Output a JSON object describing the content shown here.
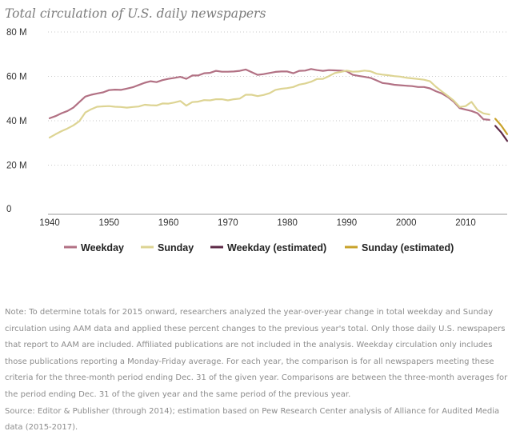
{
  "chart_data": {
    "type": "line",
    "title": "Total circulation of U.S. daily newspapers",
    "xlabel": "",
    "ylabel": "",
    "xlim": [
      1940,
      2017
    ],
    "ylim": [
      0,
      80
    ],
    "x_ticks": [
      1940,
      1950,
      1960,
      1970,
      1980,
      1990,
      2000,
      2010
    ],
    "x_tick_labels": [
      "1940",
      "1950",
      "1960",
      "1970",
      "1980",
      "1990",
      "2000",
      "2010"
    ],
    "y_ticks": [
      0,
      20,
      40,
      60,
      80
    ],
    "y_tick_labels": [
      "0",
      "20 M",
      "40 M",
      "60 M",
      "80 M"
    ],
    "grid": "horizontal dotted",
    "legend_position": "bottom",
    "series": [
      {
        "name": "Weekday",
        "color": "#b27184",
        "x": [
          1940,
          1941,
          1942,
          1943,
          1944,
          1945,
          1946,
          1947,
          1948,
          1949,
          1950,
          1951,
          1952,
          1953,
          1954,
          1955,
          1956,
          1957,
          1958,
          1959,
          1960,
          1961,
          1962,
          1963,
          1964,
          1965,
          1966,
          1967,
          1968,
          1969,
          1970,
          1971,
          1972,
          1973,
          1974,
          1975,
          1976,
          1977,
          1978,
          1979,
          1980,
          1981,
          1982,
          1983,
          1984,
          1985,
          1986,
          1987,
          1988,
          1989,
          1990,
          1991,
          1992,
          1993,
          1994,
          1995,
          1996,
          1997,
          1998,
          1999,
          2000,
          2001,
          2002,
          2003,
          2004,
          2005,
          2006,
          2007,
          2008,
          2009,
          2010,
          2011,
          2012,
          2013,
          2014
        ],
        "values": [
          41.1,
          42.1,
          43.4,
          44.4,
          45.9,
          48.4,
          50.9,
          51.7,
          52.3,
          52.8,
          53.8,
          54.0,
          53.9,
          54.5,
          55.1,
          56.1,
          57.1,
          57.8,
          57.4,
          58.3,
          58.9,
          59.3,
          59.8,
          58.9,
          60.4,
          60.4,
          61.4,
          61.6,
          62.5,
          62.1,
          62.1,
          62.2,
          62.5,
          63.1,
          61.9,
          60.7,
          61.0,
          61.5,
          62.0,
          62.2,
          62.2,
          61.4,
          62.5,
          62.6,
          63.3,
          62.8,
          62.5,
          62.8,
          62.7,
          62.6,
          62.3,
          60.7,
          60.2,
          59.8,
          59.3,
          58.2,
          57.0,
          56.7,
          56.2,
          56.0,
          55.8,
          55.6,
          55.2,
          55.2,
          54.6,
          53.3,
          52.3,
          50.7,
          48.6,
          45.7,
          45.0,
          44.4,
          43.4,
          40.7,
          40.4
        ]
      },
      {
        "name": "Sunday",
        "color": "#ddd493",
        "x": [
          1940,
          1941,
          1942,
          1943,
          1944,
          1945,
          1946,
          1947,
          1948,
          1949,
          1950,
          1951,
          1952,
          1953,
          1954,
          1955,
          1956,
          1957,
          1958,
          1959,
          1960,
          1961,
          1962,
          1963,
          1964,
          1965,
          1966,
          1967,
          1968,
          1969,
          1970,
          1971,
          1972,
          1973,
          1974,
          1975,
          1976,
          1977,
          1978,
          1979,
          1980,
          1981,
          1982,
          1983,
          1984,
          1985,
          1986,
          1987,
          1988,
          1989,
          1990,
          1991,
          1992,
          1993,
          1994,
          1995,
          1996,
          1997,
          1998,
          1999,
          2000,
          2001,
          2002,
          2003,
          2004,
          2005,
          2006,
          2007,
          2008,
          2009,
          2010,
          2011,
          2012,
          2013,
          2014
        ],
        "values": [
          32.4,
          33.9,
          35.3,
          36.5,
          37.9,
          39.8,
          43.7,
          45.2,
          46.3,
          46.5,
          46.6,
          46.3,
          46.2,
          45.9,
          46.2,
          46.4,
          47.2,
          47.0,
          46.9,
          47.8,
          47.7,
          48.2,
          48.9,
          46.8,
          48.4,
          48.6,
          49.3,
          49.2,
          49.7,
          49.7,
          49.2,
          49.7,
          50.0,
          51.7,
          51.7,
          51.1,
          51.6,
          52.4,
          53.9,
          54.4,
          54.7,
          55.2,
          56.3,
          56.8,
          57.6,
          58.8,
          58.9,
          60.1,
          61.5,
          62.0,
          62.6,
          62.1,
          62.2,
          62.6,
          62.3,
          61.2,
          60.8,
          60.5,
          60.1,
          59.9,
          59.4,
          59.1,
          58.8,
          58.5,
          57.8,
          55.3,
          53.2,
          51.2,
          49.1,
          46.2,
          46.6,
          48.5,
          44.8,
          43.3,
          42.8
        ]
      },
      {
        "name": "Weekday (estimated)",
        "color": "#5e2a47",
        "x": [
          2015,
          2016,
          2017
        ],
        "values": [
          37.7,
          34.7,
          30.9
        ]
      },
      {
        "name": "Sunday (estimated)",
        "color": "#c8a22a",
        "x": [
          2015,
          2016,
          2017
        ],
        "values": [
          40.9,
          37.8,
          34.0
        ]
      }
    ]
  },
  "note": "Note: To determine totals for 2015 onward, researchers analyzed the year-over-year change in total weekday and Sunday circulation using AAM data and applied these percent changes to the previous year's total. Only those daily U.S. newspapers that report to AAM are included. Affiliated publications are not included in the analysis. Weekday circulation only includes those publications reporting a Monday-Friday average. For each year, the comparison is for all newspapers meeting these criteria for the three-month period ending Dec. 31 of the given year. Comparisons are between the three-month averages for the period ending Dec. 31 of the given year and the same period of the previous year.",
  "source": "Source: Editor & Publisher (through 2014); estimation based on Pew Research Center analysis of Alliance for Audited Media data (2015-2017)."
}
